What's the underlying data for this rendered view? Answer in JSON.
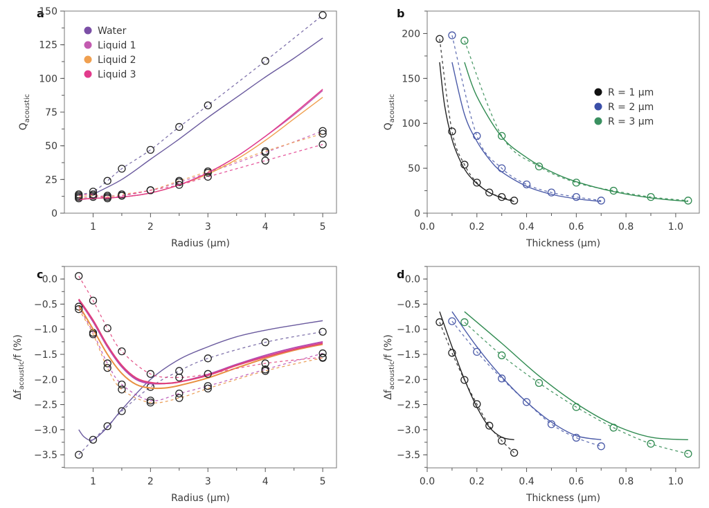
{
  "chart_data": [
    {
      "panel": "a",
      "type": "line",
      "xlabel": "Radius (µm)",
      "ylabel_main": "Q",
      "ylabel_sub": "acoustic",
      "xlim": [
        0.5,
        5.24
      ],
      "ylim": [
        0,
        150
      ],
      "xticks": [
        1,
        2,
        3,
        4,
        5
      ],
      "xtick_labels": [
        "1",
        "2",
        "3",
        "4",
        "5"
      ],
      "yticks": [
        0,
        25,
        50,
        75,
        100,
        125,
        150
      ],
      "ytick_labels": [
        "0",
        "25",
        "50",
        "75",
        "100",
        "125",
        "150"
      ],
      "legend": {
        "placement": "top-left",
        "entries": [
          {
            "label": "Water",
            "color": "#7b4fa6"
          },
          {
            "label": "Liquid 1",
            "color": "#c35bb0"
          },
          {
            "label": "Liquid 2",
            "color": "#f0a050"
          },
          {
            "label": "Liquid 3",
            "color": "#e23b8c"
          }
        ]
      },
      "series": [
        {
          "name": "Water",
          "color": "#6a5a9e",
          "fit_x": [
            1.0,
            1.5,
            2,
            2.5,
            3,
            3.5,
            4,
            4.5,
            5
          ],
          "fit_y": [
            14,
            25,
            40,
            55,
            71,
            86,
            101,
            115,
            130
          ],
          "points_x": [
            0.75,
            1,
            1.25,
            1.5,
            2,
            2.5,
            3,
            4,
            5
          ],
          "points_y": [
            14,
            16,
            24,
            33,
            47,
            64,
            80,
            113,
            147
          ]
        },
        {
          "name": "Liquid 1",
          "color": "#c35bb0",
          "fit_x": [
            0.75,
            1,
            1.5,
            2,
            2.5,
            3,
            3.5,
            4,
            4.5,
            5
          ],
          "fit_y": [
            10,
            11,
            12,
            15,
            21,
            30,
            42,
            57,
            73,
            91
          ],
          "points_x": [
            0.75,
            1,
            1.25,
            1.5,
            2,
            2.5,
            3,
            4,
            5
          ],
          "points_y": [
            11,
            12,
            13,
            13,
            17,
            23,
            30,
            45,
            61
          ]
        },
        {
          "name": "Liquid 2",
          "color": "#f0a050",
          "fit_x": [
            0.75,
            1,
            1.5,
            2,
            2.5,
            3,
            3.5,
            4,
            4.5,
            5
          ],
          "fit_y": [
            10.5,
            11,
            12,
            15,
            21,
            29,
            40,
            54,
            70,
            86
          ],
          "points_x": [
            0.75,
            1,
            1.25,
            1.5,
            2,
            2.5,
            3,
            4,
            5
          ],
          "points_y": [
            12,
            13,
            12,
            14,
            17,
            24,
            31,
            46,
            59
          ]
        },
        {
          "name": "Liquid 3",
          "color": "#e23b8c",
          "fit_x": [
            0.75,
            1,
            1.5,
            2,
            2.5,
            3,
            3.5,
            4,
            4.5,
            5
          ],
          "fit_y": [
            10,
            11,
            12,
            15,
            21,
            30,
            42,
            57,
            74,
            92
          ],
          "points_x": [
            0.75,
            1,
            1.25,
            1.5,
            2,
            2.5,
            3,
            4,
            5
          ],
          "points_y": [
            13,
            14,
            11,
            13,
            17,
            21,
            27,
            39,
            51
          ]
        }
      ]
    },
    {
      "panel": "b",
      "type": "line",
      "xlabel": "Thickness (µm)",
      "ylabel_main": "Q",
      "ylabel_sub": "acoustic",
      "xlim": [
        0,
        1.095
      ],
      "ylim": [
        0,
        225
      ],
      "xticks": [
        0,
        0.2,
        0.4,
        0.6,
        0.8,
        1.0
      ],
      "xtick_labels": [
        "0.0",
        "0.2",
        "0.4",
        "0.6",
        "0.8",
        "1.0"
      ],
      "yticks": [
        0,
        50,
        100,
        150,
        200
      ],
      "ytick_labels": [
        "0",
        "50",
        "100",
        "150",
        "200"
      ],
      "legend": {
        "placement": "center-right",
        "entries": [
          {
            "label": "R = 1 µm",
            "color": "#111111"
          },
          {
            "label": "R = 2 µm",
            "color": "#3b4fa8"
          },
          {
            "label": "R = 3 µm",
            "color": "#3a9060"
          }
        ]
      },
      "series": [
        {
          "name": "R = 1 µm",
          "color": "#222222",
          "fit_x": [
            0.05,
            0.07,
            0.1,
            0.13,
            0.16,
            0.2,
            0.25,
            0.3,
            0.35
          ],
          "fit_y": [
            168,
            120,
            82,
            60,
            45,
            33,
            23,
            17,
            13
          ],
          "points_x": [
            0.05,
            0.1,
            0.15,
            0.2,
            0.25,
            0.3,
            0.35
          ],
          "points_y": [
            194,
            91,
            54,
            34,
            23,
            18,
            14
          ]
        },
        {
          "name": "R = 2 µm",
          "color": "#4a5aa8",
          "fit_x": [
            0.1,
            0.15,
            0.2,
            0.25,
            0.3,
            0.4,
            0.5,
            0.6,
            0.7
          ],
          "fit_y": [
            168,
            110,
            80,
            60,
            46,
            30,
            21,
            16,
            13
          ],
          "points_x": [
            0.1,
            0.2,
            0.3,
            0.4,
            0.5,
            0.6,
            0.7
          ],
          "points_y": [
            198,
            86,
            50,
            32,
            23,
            18,
            14
          ]
        },
        {
          "name": "R = 3 µm",
          "color": "#2f8a50",
          "fit_x": [
            0.15,
            0.2,
            0.3,
            0.4,
            0.5,
            0.6,
            0.75,
            0.9,
            1.05
          ],
          "fit_y": [
            168,
            130,
            85,
            62,
            46,
            35,
            24,
            17,
            13
          ],
          "points_x": [
            0.15,
            0.3,
            0.45,
            0.6,
            0.75,
            0.9,
            1.05
          ],
          "points_y": [
            192,
            86,
            52,
            34,
            25,
            18,
            14
          ]
        }
      ]
    },
    {
      "panel": "c",
      "type": "line",
      "xlabel": "Radius (µm)",
      "ylabel_main": "Δf",
      "ylabel_sub": "acoustic",
      "ylabel_tail": "/f (%)",
      "xlim": [
        0.5,
        5.24
      ],
      "ylim": [
        -3.76,
        0.25
      ],
      "xticks": [
        1,
        2,
        3,
        4,
        5
      ],
      "xtick_labels": [
        "1",
        "2",
        "3",
        "4",
        "5"
      ],
      "yticks": [
        0,
        -0.5,
        -1,
        -1.5,
        -2,
        -2.5,
        -3,
        -3.5
      ],
      "ytick_labels": [
        "0.0",
        "−0.5",
        "−1.0",
        "−1.5",
        "−2.0",
        "−2.5",
        "−3.0",
        "−3.5"
      ],
      "series": [
        {
          "name": "Water",
          "color": "#6a5a9e",
          "fit_x": [
            0.75,
            0.85,
            1.0,
            1.25,
            1.5,
            2,
            2.5,
            3,
            3.5,
            4,
            4.5,
            5
          ],
          "fit_y": [
            -3.0,
            -3.15,
            -3.2,
            -2.95,
            -2.6,
            -2.0,
            -1.6,
            -1.35,
            -1.15,
            -1.02,
            -0.92,
            -0.83
          ],
          "points_x": [
            0.75,
            1,
            1.25,
            1.5,
            2,
            2.5,
            3,
            4,
            5
          ],
          "points_y": [
            -3.5,
            -3.2,
            -2.93,
            -2.63,
            -2.15,
            -1.83,
            -1.58,
            -1.26,
            -1.05
          ]
        },
        {
          "name": "Liquid 1",
          "color": "#b64ab0",
          "fit_x": [
            0.75,
            1,
            1.25,
            1.5,
            1.75,
            2,
            2.25,
            2.5,
            3,
            3.5,
            4,
            4.5,
            5
          ],
          "fit_y": [
            -0.42,
            -0.85,
            -1.35,
            -1.75,
            -2.0,
            -2.08,
            -2.08,
            -2.05,
            -1.9,
            -1.7,
            -1.52,
            -1.37,
            -1.25
          ],
          "points_x": [
            0.75,
            1,
            1.25,
            1.5,
            2,
            2.5,
            3,
            4,
            5
          ],
          "points_y": [
            -0.55,
            -1.07,
            -1.68,
            -2.1,
            -2.42,
            -2.28,
            -2.13,
            -1.8,
            -1.48
          ]
        },
        {
          "name": "Liquid 2",
          "color": "#e89040",
          "fit_x": [
            0.75,
            1,
            1.25,
            1.5,
            1.75,
            2,
            2.25,
            2.5,
            3,
            3.5,
            4,
            4.5,
            5
          ],
          "fit_y": [
            -0.52,
            -1.0,
            -1.5,
            -1.88,
            -2.1,
            -2.17,
            -2.17,
            -2.12,
            -1.97,
            -1.77,
            -1.58,
            -1.42,
            -1.3
          ],
          "points_x": [
            0.75,
            1,
            1.25,
            1.5,
            2,
            2.5,
            3,
            4,
            5
          ],
          "points_y": [
            -0.6,
            -1.1,
            -1.77,
            -2.2,
            -2.46,
            -2.37,
            -2.18,
            -1.83,
            -1.57
          ]
        },
        {
          "name": "Liquid 3",
          "color": "#e0407a",
          "fit_x": [
            0.75,
            1,
            1.25,
            1.5,
            1.75,
            2,
            2.25,
            2.5,
            3,
            3.5,
            4,
            4.5,
            5
          ],
          "fit_y": [
            -0.4,
            -0.82,
            -1.32,
            -1.72,
            -1.97,
            -2.06,
            -2.08,
            -2.05,
            -1.92,
            -1.72,
            -1.55,
            -1.4,
            -1.28
          ],
          "points_x": [
            0.75,
            1,
            1.25,
            1.5,
            2,
            2.5,
            3,
            4,
            5
          ],
          "points_y": [
            0.06,
            -0.43,
            -0.98,
            -1.44,
            -1.89,
            -1.96,
            -1.89,
            -1.68,
            -1.56
          ]
        }
      ]
    },
    {
      "panel": "d",
      "type": "line",
      "xlabel": "Thickness (µm)",
      "ylabel_main": "Δf",
      "ylabel_sub": "acoustic",
      "ylabel_tail": "/f (%)",
      "xlim": [
        0,
        1.095
      ],
      "ylim": [
        -3.76,
        0.25
      ],
      "xticks": [
        0,
        0.2,
        0.4,
        0.6,
        0.8,
        1.0
      ],
      "xtick_labels": [
        "0.0",
        "0.2",
        "0.4",
        "0.6",
        "0.8",
        "1.0"
      ],
      "yticks": [
        0,
        -0.5,
        -1,
        -1.5,
        -2,
        -2.5,
        -3,
        -3.5
      ],
      "ytick_labels": [
        "0.0",
        "−0.5",
        "−1.0",
        "−1.5",
        "−2.0",
        "−2.5",
        "−3.0",
        "−3.5"
      ],
      "series": [
        {
          "name": "R = 1 µm",
          "color": "#222222",
          "fit_x": [
            0.05,
            0.1,
            0.15,
            0.2,
            0.25,
            0.3,
            0.35
          ],
          "fit_y": [
            -0.65,
            -1.35,
            -2.0,
            -2.55,
            -2.95,
            -3.15,
            -3.2
          ],
          "points_x": [
            0.05,
            0.1,
            0.15,
            0.2,
            0.25,
            0.3,
            0.35
          ],
          "points_y": [
            -0.86,
            -1.47,
            -2.01,
            -2.49,
            -2.92,
            -3.22,
            -3.46
          ]
        },
        {
          "name": "R = 2 µm",
          "color": "#4a5aa8",
          "fit_x": [
            0.1,
            0.2,
            0.3,
            0.4,
            0.5,
            0.6,
            0.7
          ],
          "fit_y": [
            -0.65,
            -1.35,
            -1.95,
            -2.45,
            -2.85,
            -3.12,
            -3.2
          ],
          "points_x": [
            0.1,
            0.2,
            0.3,
            0.4,
            0.5,
            0.6,
            0.7
          ],
          "points_y": [
            -0.84,
            -1.45,
            -1.98,
            -2.45,
            -2.89,
            -3.16,
            -3.33
          ]
        },
        {
          "name": "R = 3 µm",
          "color": "#2f8a50",
          "fit_x": [
            0.15,
            0.3,
            0.45,
            0.6,
            0.75,
            0.9,
            1.05
          ],
          "fit_y": [
            -0.65,
            -1.28,
            -1.93,
            -2.48,
            -2.9,
            -3.15,
            -3.2
          ],
          "points_x": [
            0.15,
            0.3,
            0.45,
            0.6,
            0.75,
            0.9,
            1.05
          ],
          "points_y": [
            -0.86,
            -1.52,
            -2.07,
            -2.55,
            -2.96,
            -3.28,
            -3.48
          ]
        }
      ]
    }
  ]
}
